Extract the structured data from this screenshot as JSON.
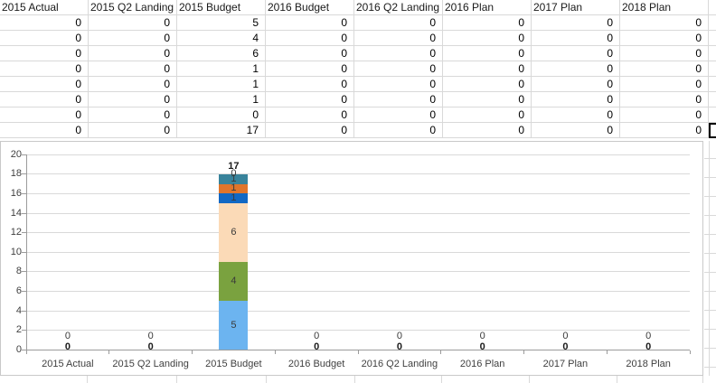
{
  "table": {
    "headers": [
      "2015 Actual",
      "2015 Q2 Landing",
      "2015 Budget",
      "2016 Budget",
      "2016 Q2 Landing",
      "2016 Plan",
      "2017 Plan",
      "2018 Plan"
    ],
    "rows": [
      [
        "0",
        "0",
        "5",
        "0",
        "0",
        "0",
        "0",
        "0"
      ],
      [
        "0",
        "0",
        "4",
        "0",
        "0",
        "0",
        "0",
        "0"
      ],
      [
        "0",
        "0",
        "6",
        "0",
        "0",
        "0",
        "0",
        "0"
      ],
      [
        "0",
        "0",
        "1",
        "0",
        "0",
        "0",
        "0",
        "0"
      ],
      [
        "0",
        "0",
        "1",
        "0",
        "0",
        "0",
        "0",
        "0"
      ],
      [
        "0",
        "0",
        "1",
        "0",
        "0",
        "0",
        "0",
        "0"
      ],
      [
        "0",
        "0",
        "0",
        "0",
        "0",
        "0",
        "0",
        "0"
      ],
      [
        "0",
        "0",
        "17",
        "0",
        "0",
        "0",
        "0",
        "0"
      ]
    ]
  },
  "chart_data": {
    "type": "bar",
    "stacked": true,
    "title": "",
    "categories": [
      "2015 Actual",
      "2015 Q2 Landing",
      "2015 Budget",
      "2016 Budget",
      "2016 Q2 Landing",
      "2016 Plan",
      "2017 Plan",
      "2018 Plan"
    ],
    "series": [
      {
        "color": "#6CB4F0",
        "values": [
          0,
          0,
          5,
          0,
          0,
          0,
          0,
          0
        ]
      },
      {
        "color": "#7AA23F",
        "values": [
          0,
          0,
          4,
          0,
          0,
          0,
          0,
          0
        ]
      },
      {
        "color": "#FBDAB7",
        "values": [
          0,
          0,
          6,
          0,
          0,
          0,
          0,
          0
        ]
      },
      {
        "color": "#1168C4",
        "values": [
          0,
          0,
          1,
          0,
          0,
          0,
          0,
          0
        ]
      },
      {
        "color": "#E0752B",
        "values": [
          0,
          0,
          1,
          0,
          0,
          0,
          0,
          0
        ]
      },
      {
        "color": "#38839B",
        "values": [
          0,
          0,
          1,
          0,
          0,
          0,
          0,
          0
        ]
      },
      {
        "color": "",
        "values": [
          0,
          0,
          0,
          0,
          0,
          0,
          0,
          0
        ]
      }
    ],
    "totals": [
      "0",
      "0",
      "17",
      "0",
      "0",
      "0",
      "0",
      "0"
    ],
    "zero_label": "0",
    "y_ticks": [
      0,
      2,
      4,
      6,
      8,
      10,
      12,
      14,
      16,
      18,
      20
    ],
    "ylim": [
      0,
      20
    ],
    "grid": true,
    "legend": false
  },
  "colors": {
    "gridline": "#D9D9D9",
    "axis": "#9B9B9B",
    "table_border": "#D9D9D9",
    "chart_border": "#C9C9C9",
    "chart_text": "#3a3a3a",
    "selection": "#000000"
  }
}
